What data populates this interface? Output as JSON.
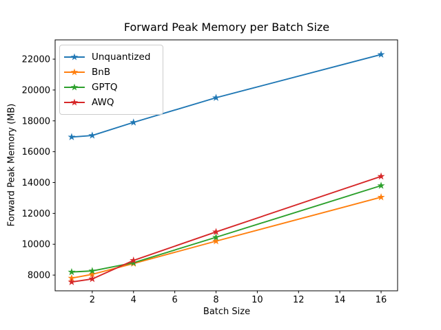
{
  "chart_data": {
    "type": "line",
    "title": "Forward Peak Memory per Batch Size",
    "xlabel": "Batch Size",
    "ylabel": "Forward Peak Memory (MB)",
    "marker": "star",
    "grid": false,
    "legend_position": "upper left",
    "x": [
      1,
      2,
      4,
      8,
      16
    ],
    "series": [
      {
        "name": "Unquantized",
        "color": "#1f77b4",
        "values": [
          16950,
          17050,
          17900,
          19500,
          22300
        ]
      },
      {
        "name": "BnB",
        "color": "#ff7f0e",
        "values": [
          7800,
          8050,
          8750,
          10200,
          13050
        ]
      },
      {
        "name": "GPTQ",
        "color": "#2ca02c",
        "values": [
          8200,
          8270,
          8800,
          10450,
          13800
        ]
      },
      {
        "name": "AWQ",
        "color": "#d62728",
        "values": [
          7550,
          7750,
          8950,
          10800,
          14400
        ]
      }
    ],
    "xticks": [
      2,
      4,
      6,
      8,
      10,
      12,
      14,
      16
    ],
    "yticks": [
      8000,
      10000,
      12000,
      14000,
      16000,
      18000,
      20000,
      22000
    ],
    "xlim": [
      0.2,
      16.8
    ],
    "ylim": [
      6980,
      23250
    ],
    "axis_color": "#000000"
  }
}
